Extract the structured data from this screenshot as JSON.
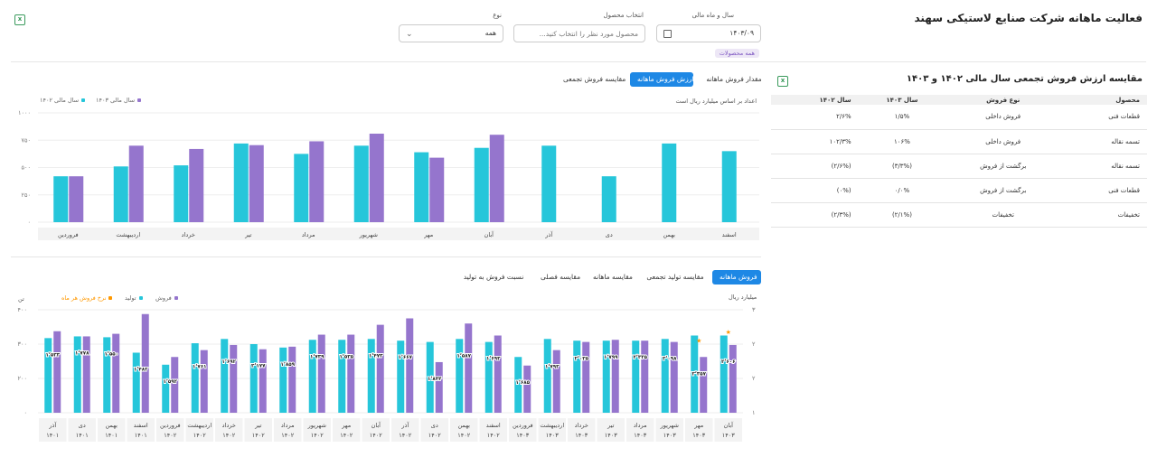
{
  "page": {
    "title": "فعالیت ماهانه شرکت صنایع لاستیکی سهند"
  },
  "filters": {
    "year_month": {
      "label": "سال و ماه مالی",
      "value": "۱۴۰۳/۰۹",
      "icon": "calendar-icon"
    },
    "product": {
      "label": "انتخاب محصول",
      "placeholder": "محصول مورد نظر را انتخاب کنید..."
    },
    "type": {
      "label": "نوع",
      "value": "همه",
      "icon": "chevron-down-icon"
    },
    "badge": "همه محصولات"
  },
  "annual": {
    "title": "مقایسه ارزش فروش تجمعی سال مالی ۱۴۰۲ و ۱۴۰۳",
    "headers": [
      "محصول",
      "نوع فروش",
      "سال ۱۴۰۳",
      "سال ۱۴۰۲"
    ],
    "rows": [
      [
        "قطعات فنی",
        "فروش داخلی",
        "۱/۵%",
        "۲/۶%"
      ],
      [
        "تسمه نقاله",
        "فروش داخلی",
        "۱۰۶%",
        "۱۰۲/۳%"
      ],
      [
        "تسمه نقاله",
        "برگشت از فروش",
        "(۳/۳%)",
        "(۲/۶%)"
      ],
      [
        "قطعات فنی",
        "برگشت از فروش",
        "۰/۰%",
        "(۰%)"
      ],
      [
        "تخفیفات",
        "تخفیفات",
        "(۲/۱%)",
        "(۲/۳%)"
      ]
    ]
  },
  "top_tabs": [
    "مقدار فروش ماهانه",
    "ارزش فروش ماهانه",
    "مقایسه فروش تجمعی"
  ],
  "top_chart_note": "اعداد بر اساس میلیارد ریال است",
  "bottom_tabs": [
    "فروش ماهانه",
    "مقایسه تولید تجمعی",
    "مقایسه ماهانه",
    "مقایسه فصلی",
    "نسبت فروش به تولید"
  ],
  "colors": {
    "teal": "#26c6da",
    "purple": "#9575cd",
    "orange": "#ff9800",
    "accent": "#1e88e5"
  },
  "chart_data": [
    {
      "type": "bar",
      "categories": [
        "اسفند",
        "بهمن",
        "دی",
        "آذر",
        "آبان",
        "مهر",
        "شهریور",
        "مرداد",
        "تیر",
        "خرداد",
        "اردیبهشت",
        "فروردین"
      ],
      "series": [
        {
          "name": "سال مالی ۱۴۰۳",
          "color": "#9575cd",
          "values": [
            null,
            null,
            null,
            null,
            800,
            590,
            810,
            740,
            705,
            670,
            700,
            420
          ]
        },
        {
          "name": "سال مالی ۱۴۰۲",
          "color": "#26c6da",
          "values": [
            650,
            720,
            420,
            700,
            680,
            640,
            700,
            625,
            720,
            520,
            510,
            420
          ]
        }
      ],
      "ylim": [
        0,
        1000
      ],
      "yticks": [
        "۱۰۰۰",
        "۷۵۰",
        "۵۰۰",
        "۲۵۰",
        "۰"
      ]
    },
    {
      "type": "bar",
      "categories": [
        "آبان ۱۴۰۳",
        "مهر ۱۴۰۳",
        "شهریور ۱۴۰۳",
        "مرداد ۱۴۰۳",
        "تیر ۱۴۰۳",
        "خرداد ۱۴۰۳",
        "اردیبهشت ۱۴۰۳",
        "فروردین ۱۴۰۳",
        "اسفند ۱۴۰۲",
        "بهمن ۱۴۰۲",
        "دی ۱۴۰۲",
        "آذر ۱۴۰۲",
        "آبان ۱۴۰۲",
        "مهر ۱۴۰۲",
        "شهریور ۱۴۰۲",
        "مرداد ۱۴۰۲",
        "تیر ۱۴۰۲",
        "خرداد ۱۴۰۲",
        "اردیبهشت ۱۴۰۲",
        "فروردین ۱۴۰۲",
        "اسفند ۱۴۰۱",
        "بهمن ۱۴۰۱",
        "دی ۱۴۰۱",
        "آذر ۱۴۰۱"
      ],
      "series": [
        {
          "name": "تولید",
          "color": "#26c6da",
          "values": [
            2.8,
            2.8,
            2.72,
            2.68,
            2.68,
            2.68,
            2.72,
            2.3,
            2.65,
            2.72,
            2.65,
            2.68,
            2.72,
            2.7,
            2.7,
            2.52,
            2.6,
            2.72,
            2.62,
            2.12,
            2.4,
            2.76,
            2.78,
            2.74
          ]
        },
        {
          "name": "فروش",
          "color": "#9575cd",
          "values": [
            2.58,
            2.3,
            2.65,
            2.68,
            2.7,
            2.65,
            2.46,
            2.1,
            2.8,
            3.08,
            2.18,
            3.2,
            3.05,
            2.82,
            2.82,
            2.54,
            2.48,
            2.58,
            2.46,
            2.3,
            3.3,
            2.84,
            2.78,
            2.9
          ]
        },
        {
          "name": "نرخ فروش هر ماه",
          "color": "#ff9800",
          "values": [
            2.9,
            2.7,
            null,
            null,
            null,
            null,
            null,
            null,
            null,
            null,
            null,
            null,
            null,
            null,
            null,
            null,
            null,
            null,
            null,
            null,
            null,
            null,
            null,
            null
          ]
        }
      ],
      "value_labels": [
        "۲٬۶۰۶",
        "۲٬۳۵۷",
        "۲٬۰۹۸",
        "۲٬۳۳۵",
        "۱٬۷۹۹",
        "۲٬۰۳۵",
        "۱٬۷۹۳",
        "۱٬۶۸۵",
        "۱٬۶۹۳",
        "۱٬۵۸۷",
        "۱٬۸۴۴",
        "۱٬۶۶۷",
        "۱٬۴۷۳",
        "۱٬۵۳۵",
        "۱٬۷۳۹",
        "۱٬۸۵۹",
        "۲٬۱۷۷",
        "۱٬۶۹۲",
        "۱٬۷۶۱",
        "۱٬۵۹۲",
        "۱٬۴۸۲",
        "۱٬۵۵۰",
        "۱٬۷۷۸",
        "۱٬۵۳۳"
      ],
      "ylabel_right": "میلیارد ریال",
      "ylabel_left": "تن",
      "yticks_left": [
        "۴۰۰",
        "۳۰۰",
        "۲۰۰",
        "۰"
      ],
      "yticks_right": [
        "۳",
        "۲",
        "۲",
        "۱"
      ],
      "ylim": [
        1,
        3.4
      ],
      "legend": [
        "فروش",
        "تولید",
        "نرخ فروش هر ماه"
      ]
    }
  ]
}
